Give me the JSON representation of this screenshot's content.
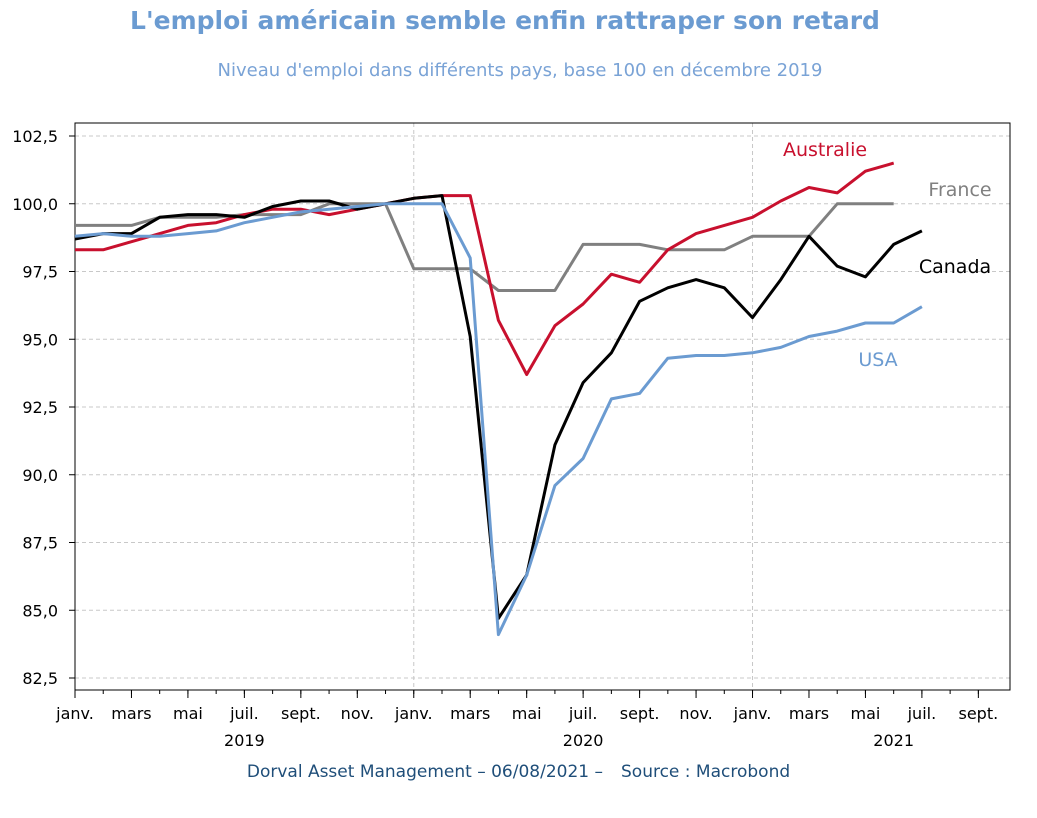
{
  "header": {
    "title": "L'emploi américain semble enfin rattraper son retard",
    "subtitle": "Niveau d'emploi dans différents pays, base 100 en décembre 2019"
  },
  "footer": {
    "author": "Dorval Asset Management – 06/08/2021 –",
    "source": "Source : Macrobond"
  },
  "chart_data": {
    "type": "line",
    "title": "L'emploi américain semble enfin rattraper son retard",
    "subtitle": "Niveau d'emploi dans différents pays, base 100 en décembre 2019",
    "xlabel": "",
    "ylabel": "",
    "ylim": [
      82.5,
      102.5
    ],
    "xlim": [
      "2019-01",
      "2021-09"
    ],
    "yticks": [
      "82,5",
      "85,0",
      "87,5",
      "90,0",
      "92,5",
      "95,0",
      "97,5",
      "100,0",
      "102,5"
    ],
    "ytick_values": [
      82.5,
      85.0,
      87.5,
      90.0,
      92.5,
      95.0,
      97.5,
      100.0,
      102.5
    ],
    "xticks": [
      "janv.",
      "mars",
      "mai",
      "juil.",
      "sept.",
      "nov.",
      "janv.",
      "mars",
      "mai",
      "juil.",
      "sept.",
      "nov.",
      "janv.",
      "mars",
      "mai",
      "juil.",
      "sept."
    ],
    "xtick_dates": [
      "2019-01",
      "2019-03",
      "2019-05",
      "2019-07",
      "2019-09",
      "2019-11",
      "2020-01",
      "2020-03",
      "2020-05",
      "2020-07",
      "2020-09",
      "2020-11",
      "2021-01",
      "2021-03",
      "2021-05",
      "2021-07",
      "2021-09"
    ],
    "year_labels": [
      {
        "label": "2019",
        "date": "2019-07"
      },
      {
        "label": "2020",
        "date": "2020-07"
      },
      {
        "label": "2021",
        "date": "2021-06"
      }
    ],
    "grid": true,
    "legend": "inline labels at series ends",
    "series": [
      {
        "name": "France",
        "color": "#808080",
        "x": [
          "2019-01",
          "2019-02",
          "2019-03",
          "2019-04",
          "2019-05",
          "2019-06",
          "2019-07",
          "2019-08",
          "2019-09",
          "2019-10",
          "2019-11",
          "2019-12",
          "2020-01",
          "2020-02",
          "2020-03",
          "2020-04",
          "2020-05",
          "2020-06",
          "2020-07",
          "2020-08",
          "2020-09",
          "2020-10",
          "2020-11",
          "2020-12",
          "2021-01",
          "2021-02",
          "2021-03",
          "2021-04",
          "2021-05",
          "2021-06"
        ],
        "values": [
          99.2,
          99.2,
          99.2,
          99.5,
          99.5,
          99.5,
          99.6,
          99.6,
          99.6,
          100.0,
          100.0,
          100.0,
          97.6,
          97.6,
          97.6,
          96.8,
          96.8,
          96.8,
          98.5,
          98.5,
          98.5,
          98.3,
          98.3,
          98.3,
          98.8,
          98.8,
          98.8,
          100.0,
          100.0,
          100.0
        ]
      },
      {
        "name": "Australie",
        "color": "#c8102e",
        "x": [
          "2019-01",
          "2019-02",
          "2019-03",
          "2019-04",
          "2019-05",
          "2019-06",
          "2019-07",
          "2019-08",
          "2019-09",
          "2019-10",
          "2019-11",
          "2019-12",
          "2020-01",
          "2020-02",
          "2020-03",
          "2020-04",
          "2020-05",
          "2020-06",
          "2020-07",
          "2020-08",
          "2020-09",
          "2020-10",
          "2020-11",
          "2020-12",
          "2021-01",
          "2021-02",
          "2021-03",
          "2021-04",
          "2021-05",
          "2021-06"
        ],
        "values": [
          98.3,
          98.3,
          98.6,
          98.9,
          99.2,
          99.3,
          99.6,
          99.8,
          99.8,
          99.6,
          99.8,
          100.0,
          100.2,
          100.3,
          100.3,
          95.7,
          93.7,
          95.5,
          96.3,
          97.4,
          97.1,
          98.3,
          98.9,
          99.2,
          99.5,
          100.1,
          100.6,
          100.4,
          101.2,
          101.5
        ]
      },
      {
        "name": "Canada",
        "color": "#000000",
        "x": [
          "2019-01",
          "2019-02",
          "2019-03",
          "2019-04",
          "2019-05",
          "2019-06",
          "2019-07",
          "2019-08",
          "2019-09",
          "2019-10",
          "2019-11",
          "2019-12",
          "2020-01",
          "2020-02",
          "2020-03",
          "2020-04",
          "2020-05",
          "2020-06",
          "2020-07",
          "2020-08",
          "2020-09",
          "2020-10",
          "2020-11",
          "2020-12",
          "2021-01",
          "2021-02",
          "2021-03",
          "2021-04",
          "2021-05",
          "2021-06",
          "2021-07"
        ],
        "values": [
          98.7,
          98.9,
          98.9,
          99.5,
          99.6,
          99.6,
          99.5,
          99.9,
          100.1,
          100.1,
          99.8,
          100.0,
          100.2,
          100.3,
          95.1,
          84.7,
          86.3,
          91.1,
          93.4,
          94.5,
          96.4,
          96.9,
          97.2,
          96.9,
          95.8,
          97.2,
          98.8,
          97.7,
          97.3,
          98.5,
          99.0
        ]
      },
      {
        "name": "USA",
        "color": "#6b9bd1",
        "x": [
          "2019-01",
          "2019-02",
          "2019-03",
          "2019-04",
          "2019-05",
          "2019-06",
          "2019-07",
          "2019-08",
          "2019-09",
          "2019-10",
          "2019-11",
          "2019-12",
          "2020-01",
          "2020-02",
          "2020-03",
          "2020-04",
          "2020-05",
          "2020-06",
          "2020-07",
          "2020-08",
          "2020-09",
          "2020-10",
          "2020-11",
          "2020-12",
          "2021-01",
          "2021-02",
          "2021-03",
          "2021-04",
          "2021-05",
          "2021-06",
          "2021-07"
        ],
        "values": [
          98.8,
          98.9,
          98.8,
          98.8,
          98.9,
          99.0,
          99.3,
          99.5,
          99.7,
          99.8,
          99.9,
          100.0,
          100.0,
          100.0,
          98.0,
          84.1,
          86.3,
          89.6,
          90.6,
          92.8,
          93.0,
          94.3,
          94.4,
          94.4,
          94.5,
          94.7,
          95.1,
          95.3,
          95.6,
          95.6,
          96.2
        ]
      }
    ],
    "labels": [
      {
        "text": "Australie",
        "series": "Australie",
        "color": "#c8102e"
      },
      {
        "text": "France",
        "series": "France",
        "color": "#808080"
      },
      {
        "text": "Canada",
        "series": "Canada",
        "color": "#000000"
      },
      {
        "text": "USA",
        "series": "USA",
        "color": "#6b9bd1"
      }
    ]
  }
}
